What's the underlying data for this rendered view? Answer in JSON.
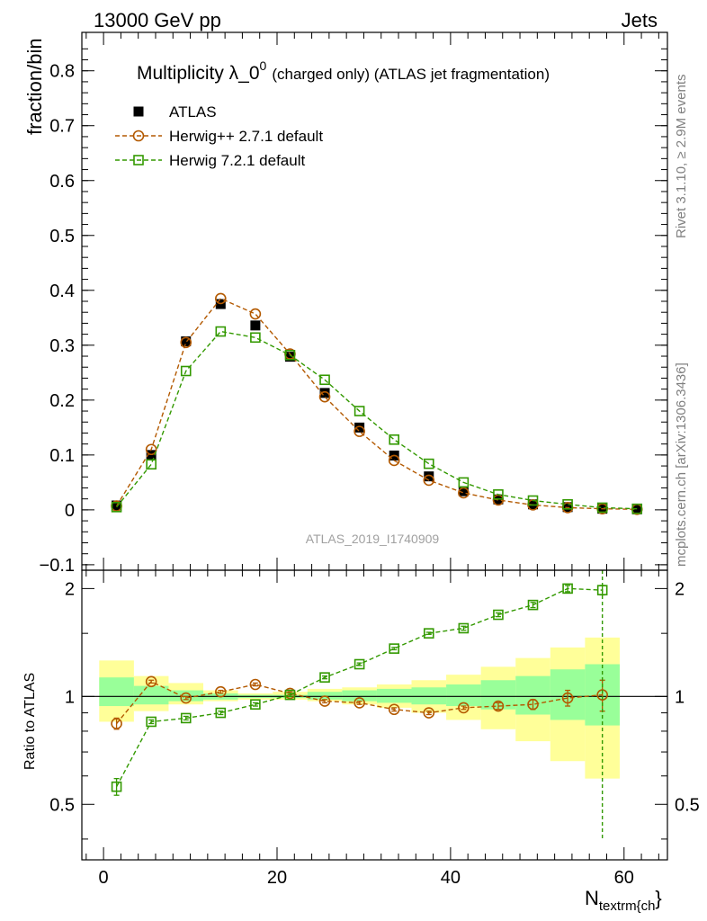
{
  "header": {
    "left": "13000 GeV pp",
    "right": "Jets"
  },
  "side": {
    "rivet": "Rivet 3.1.10, ≥ 2.9M events",
    "mcplots": "mcplots.cern.ch [arXiv:1306.3436]"
  },
  "chart_data": [
    {
      "type": "scatter",
      "panel": "main",
      "title": "Multiplicity λ_0",
      "title_sup": "0",
      "title_suffix": "(charged only) (ATLAS jet fragmentation)",
      "ylabel": "fraction/bin",
      "analysis_label": "ATLAS_2019_I1740909",
      "xlim": [
        -2.5,
        65
      ],
      "ylim": [
        -0.11,
        0.87
      ],
      "y_ticks": [
        -0.1,
        0,
        0.1,
        0.2,
        0.3,
        0.4,
        0.5,
        0.6,
        0.7,
        0.8
      ],
      "y_tick_labels": [
        "−0.1",
        "0",
        "0.1",
        "0.2",
        "0.3",
        "0.4",
        "0.5",
        "0.6",
        "0.7",
        "0.8"
      ],
      "grid": false,
      "legend_position": "top-left",
      "x": [
        1.5,
        5.5,
        9.5,
        13.5,
        17.5,
        21.5,
        25.5,
        29.5,
        33.5,
        37.5,
        41.5,
        45.5,
        49.5,
        53.5,
        57.5,
        61.5
      ],
      "series": [
        {
          "name": "ATLAS",
          "color": "#000000",
          "marker": "filled-square",
          "values": [
            0.008,
            0.1,
            0.307,
            0.375,
            0.336,
            0.279,
            0.213,
            0.15,
            0.099,
            0.061,
            0.034,
            0.019,
            0.01,
            0.005,
            0.002,
            0.001
          ]
        },
        {
          "name": "Herwig++ 2.7.1 default",
          "color": "#b35900",
          "marker": "open-circle",
          "values": [
            0.007,
            0.11,
            0.305,
            0.385,
            0.357,
            0.284,
            0.206,
            0.143,
            0.09,
            0.054,
            0.031,
            0.018,
            0.009,
            0.004,
            0.002,
            0.001
          ]
        },
        {
          "name": "Herwig 7.2.1 default",
          "color": "#339900",
          "marker": "open-square",
          "values": [
            0.005,
            0.083,
            0.253,
            0.325,
            0.314,
            0.282,
            0.237,
            0.18,
            0.128,
            0.084,
            0.05,
            0.028,
            0.017,
            0.01,
            0.004,
            0.002
          ]
        }
      ]
    },
    {
      "type": "scatter",
      "panel": "ratio",
      "ylabel": "Ratio to ATLAS",
      "xlabel": "N",
      "xlabel_sub": "textrm{ch",
      "xlabel_suffix": "}",
      "xlim": [
        -2.5,
        65
      ],
      "ylim": [
        0.35,
        2.25
      ],
      "x_ticks": [
        0,
        20,
        40,
        60
      ],
      "x_tick_labels": [
        "0",
        "20",
        "40",
        "60"
      ],
      "y_ticks": [
        0.5,
        1,
        2
      ],
      "y_tick_labels": [
        "0.5",
        "1",
        "2"
      ],
      "band_edges": [
        -0.5,
        3.5,
        7.5,
        11.5,
        15.5,
        19.5,
        23.5,
        27.5,
        31.5,
        35.5,
        39.5,
        43.5,
        47.5,
        51.5,
        55.5,
        59.5
      ],
      "band_total": [
        [
          0.85,
          1.26
        ],
        [
          0.91,
          1.14
        ],
        [
          0.95,
          1.09
        ],
        [
          0.97,
          1.04
        ],
        [
          0.98,
          1.02
        ],
        [
          0.98,
          1.03
        ],
        [
          0.97,
          1.05
        ],
        [
          0.95,
          1.06
        ],
        [
          0.93,
          1.08
        ],
        [
          0.9,
          1.11
        ],
        [
          0.86,
          1.15
        ],
        [
          0.81,
          1.21
        ],
        [
          0.75,
          1.28
        ],
        [
          0.66,
          1.37
        ],
        [
          0.59,
          1.46
        ]
      ],
      "band_stat": [
        [
          0.94,
          1.13
        ],
        [
          0.95,
          1.07
        ],
        [
          0.97,
          1.04
        ],
        [
          0.98,
          1.02
        ],
        [
          0.99,
          1.01
        ],
        [
          0.99,
          1.01
        ],
        [
          0.98,
          1.03
        ],
        [
          0.97,
          1.04
        ],
        [
          0.96,
          1.05
        ],
        [
          0.95,
          1.06
        ],
        [
          0.94,
          1.08
        ],
        [
          0.92,
          1.11
        ],
        [
          0.89,
          1.14
        ],
        [
          0.86,
          1.19
        ],
        [
          0.83,
          1.23
        ]
      ],
      "series": [
        {
          "name": "Herwig++ 2.7.1 default",
          "color": "#b35900",
          "marker": "open-circle",
          "x": [
            1.5,
            5.5,
            9.5,
            13.5,
            17.5,
            21.5,
            25.5,
            29.5,
            33.5,
            37.5,
            41.5,
            45.5,
            49.5,
            53.5,
            57.5
          ],
          "values": [
            0.84,
            1.1,
            0.99,
            1.03,
            1.08,
            1.02,
            0.97,
            0.96,
            0.92,
            0.9,
            0.93,
            0.94,
            0.95,
            0.99,
            1.01
          ],
          "err": [
            0.03,
            0.01,
            0.01,
            0.01,
            0.01,
            0.01,
            0.01,
            0.01,
            0.01,
            0.01,
            0.01,
            0.02,
            0.03,
            0.05,
            0.1
          ]
        },
        {
          "name": "Herwig 7.2.1 default",
          "color": "#339900",
          "marker": "open-square",
          "x": [
            1.5,
            5.5,
            9.5,
            13.5,
            17.5,
            21.5,
            25.5,
            29.5,
            33.5,
            37.5,
            41.5,
            45.5,
            49.5,
            53.5,
            57.5
          ],
          "values": [
            0.56,
            0.85,
            0.87,
            0.9,
            0.95,
            1.01,
            1.13,
            1.23,
            1.36,
            1.5,
            1.55,
            1.69,
            1.8,
            2.0,
            1.98
          ],
          "err": [
            0.03,
            0.01,
            0.01,
            0.01,
            0.01,
            0.01,
            0.01,
            0.01,
            0.01,
            0.01,
            0.02,
            0.02,
            0.03,
            0.04,
            0.06
          ],
          "overflow_error": {
            "x": 57.5,
            "low": 0.4
          }
        }
      ]
    }
  ]
}
